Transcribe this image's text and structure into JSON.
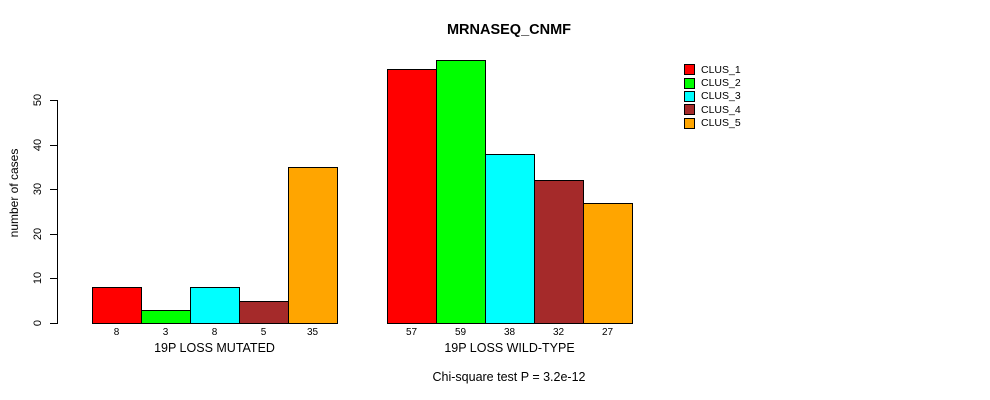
{
  "title": "MRNASEQ_CNMF",
  "chart_data": {
    "type": "bar",
    "title": "MRNASEQ_CNMF",
    "ylabel": "number of cases",
    "xlabel": "",
    "ylim": [
      0,
      50
    ],
    "yticks": [
      0,
      10,
      20,
      30,
      40,
      50
    ],
    "grid": false,
    "legend_position": "right",
    "series": [
      {
        "name": "CLUS_1",
        "color": "#FF0000",
        "values": [
          8,
          57
        ]
      },
      {
        "name": "CLUS_2",
        "color": "#00FF00",
        "values": [
          3,
          59
        ]
      },
      {
        "name": "CLUS_3",
        "color": "#00FFFF",
        "values": [
          8,
          38
        ]
      },
      {
        "name": "CLUS_4",
        "color": "#A52A2A",
        "values": [
          5,
          32
        ]
      },
      {
        "name": "CLUS_5",
        "color": "#FFA500",
        "values": [
          35,
          27
        ]
      }
    ],
    "groups": [
      {
        "label": "19P LOSS MUTATED",
        "values": [
          8,
          3,
          8,
          5,
          35
        ]
      },
      {
        "label": "19P LOSS WILD-TYPE",
        "values": [
          57,
          59,
          38,
          32,
          27
        ]
      }
    ],
    "bar_value_labels_shown": true,
    "annotation": "Chi-square test P = 3.2e-12",
    "axis_color": "#000000",
    "background_color": "#FFFFFF"
  }
}
